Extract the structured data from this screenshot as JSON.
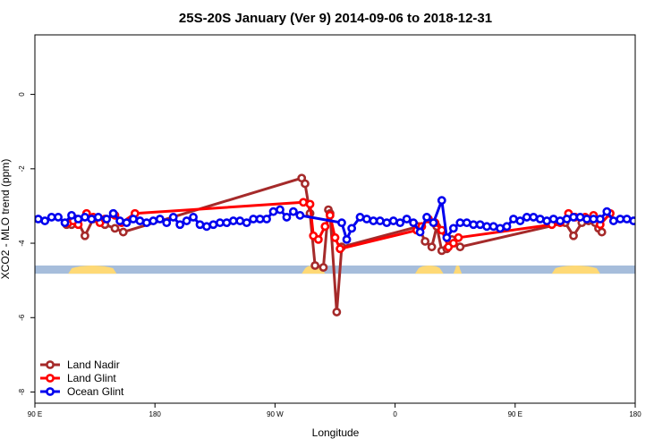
{
  "chart_data": {
    "type": "line",
    "title": "25S-20S January (Ver 9)   2014-09-06 to 2018-12-31",
    "xlabel": "Longitude",
    "ylabel": "XCO2 - MLO trend (ppm)",
    "xlim": [
      0,
      360
    ],
    "ylim": [
      -8.3,
      1.6
    ],
    "x_ticks": [
      {
        "value": 0,
        "label": "90 E"
      },
      {
        "value": 72,
        "label": "180"
      },
      {
        "value": 144,
        "label": "90 W"
      },
      {
        "value": 216,
        "label": "0"
      },
      {
        "value": 288,
        "label": "90 E"
      },
      {
        "value": 360,
        "label": "180"
      }
    ],
    "y_ticks": [
      {
        "value": 0,
        "label": "0"
      },
      {
        "value": -2,
        "label": "-2"
      },
      {
        "value": -4,
        "label": "-4"
      },
      {
        "value": -6,
        "label": "-6"
      },
      {
        "value": -8,
        "label": "-8"
      }
    ],
    "legend_position": "bottom-left",
    "land_strip": {
      "y_range": [
        -4.6,
        -4.82
      ],
      "ocean_color": "#a6bddb",
      "land_color": "#fed976",
      "land_segments": [
        [
          20,
          49
        ],
        [
          160,
          174
        ],
        [
          228,
          245
        ],
        [
          251,
          256
        ],
        [
          310,
          339
        ]
      ]
    },
    "series": [
      {
        "name": "Land Nadir",
        "color": "#a52a2a",
        "x": [
          19,
          22,
          25,
          30,
          35,
          42,
          48,
          53,
          160,
          162,
          165,
          168,
          173,
          176,
          177,
          181,
          184,
          230,
          234,
          238,
          241,
          244,
          247,
          250,
          255,
          318,
          323,
          328,
          332,
          336,
          338,
          340
        ],
        "y": [
          -3.5,
          -3.5,
          -3.35,
          -3.8,
          -3.35,
          -3.5,
          -3.6,
          -3.7,
          -2.25,
          -2.4,
          -3.2,
          -4.6,
          -4.65,
          -3.1,
          -3.2,
          -5.85,
          -4.1,
          -3.55,
          -3.95,
          -4.1,
          -3.55,
          -4.2,
          -4.15,
          -3.9,
          -4.1,
          -3.45,
          -3.8,
          -3.45,
          -3.4,
          -3.45,
          -3.6,
          -3.7
        ]
      },
      {
        "name": "Land Glint",
        "color": "#ff0000",
        "x": [
          20,
          23,
          26,
          31,
          35,
          39,
          42,
          48,
          52,
          60,
          161,
          165,
          167,
          170,
          174,
          177,
          180,
          183,
          229,
          232,
          236,
          240,
          244,
          248,
          251,
          254,
          310,
          315,
          320,
          324,
          330,
          335,
          339,
          345
        ],
        "y": [
          -3.45,
          -3.4,
          -3.5,
          -3.2,
          -3.3,
          -3.45,
          -3.35,
          -3.25,
          -3.45,
          -3.2,
          -2.9,
          -2.95,
          -3.8,
          -3.9,
          -3.55,
          -3.25,
          -3.85,
          -4.15,
          -3.65,
          -3.55,
          -3.35,
          -3.45,
          -3.65,
          -4.1,
          -4.0,
          -3.85,
          -3.5,
          -3.45,
          -3.2,
          -3.3,
          -3.3,
          -3.25,
          -3.5,
          -3.2
        ]
      },
      {
        "name": "Ocean Glint",
        "color": "#0000ee",
        "x": [
          2,
          6,
          10,
          14,
          18,
          22,
          26,
          30,
          34,
          38,
          43,
          47,
          51,
          55,
          59,
          63,
          67,
          71,
          75,
          79,
          83,
          87,
          91,
          95,
          99,
          103,
          107,
          111,
          115,
          119,
          123,
          127,
          131,
          135,
          139,
          143,
          147,
          151,
          155,
          159,
          184,
          187,
          190,
          195,
          199,
          203,
          207,
          211,
          215,
          219,
          223,
          227,
          231,
          235,
          239,
          244,
          247,
          251,
          255,
          259,
          263,
          267,
          271,
          275,
          279,
          283,
          287,
          291,
          295,
          299,
          303,
          307,
          311,
          315,
          319,
          323,
          327,
          331,
          335,
          339,
          343,
          347,
          351,
          355,
          359
        ],
        "y": [
          -3.35,
          -3.4,
          -3.3,
          -3.3,
          -3.45,
          -3.25,
          -3.35,
          -3.3,
          -3.35,
          -3.3,
          -3.35,
          -3.2,
          -3.4,
          -3.45,
          -3.35,
          -3.4,
          -3.45,
          -3.4,
          -3.35,
          -3.45,
          -3.3,
          -3.5,
          -3.4,
          -3.3,
          -3.5,
          -3.55,
          -3.5,
          -3.45,
          -3.45,
          -3.4,
          -3.4,
          -3.45,
          -3.35,
          -3.35,
          -3.35,
          -3.15,
          -3.1,
          -3.3,
          -3.15,
          -3.25,
          -3.45,
          -3.9,
          -3.6,
          -3.3,
          -3.35,
          -3.4,
          -3.4,
          -3.45,
          -3.4,
          -3.45,
          -3.35,
          -3.45,
          -3.7,
          -3.3,
          -3.45,
          -2.85,
          -3.85,
          -3.6,
          -3.45,
          -3.45,
          -3.5,
          -3.5,
          -3.55,
          -3.55,
          -3.6,
          -3.55,
          -3.35,
          -3.4,
          -3.3,
          -3.3,
          -3.35,
          -3.4,
          -3.35,
          -3.4,
          -3.35,
          -3.3,
          -3.3,
          -3.35,
          -3.35,
          -3.35,
          -3.15,
          -3.4,
          -3.35,
          -3.35,
          -3.4
        ]
      }
    ]
  }
}
